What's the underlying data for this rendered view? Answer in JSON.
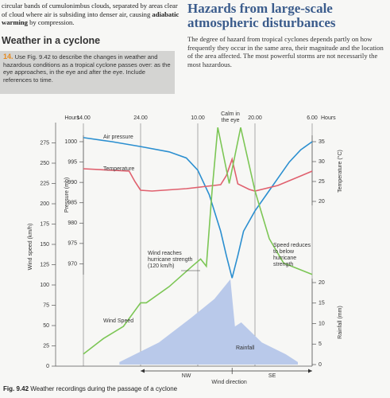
{
  "intro": [
    "circular bands of cumulonimbus clouds, separated by areas clear of cloud where air is subsiding into denser air, causing ",
    "adiabatic warming",
    " by compression."
  ],
  "section_heading": "Weather in a cyclone",
  "question": {
    "number": "14.",
    "text": "Use Fig. 9.42 to describe the changes in weather and hazardous conditions as a tropical cyclone passes over: as the eye approaches, in the eye and after the eye. Include references to time."
  },
  "article": {
    "title": "Hazards from large-scale atmospheric disturbances",
    "text": "The degree of hazard from tropical cyclones depends partly on how frequently they occur in the same area, their magnitude and the location of the area affected. The most powerful storms are not necessarily the most hazardous."
  },
  "chart_data": {
    "type": "line",
    "x_unit": "Hours",
    "xlim": [
      0,
      40
    ],
    "xticks": [
      {
        "value": 0,
        "label": "14.00"
      },
      {
        "value": 10,
        "label": "24.00"
      },
      {
        "value": 20,
        "label": "10.00"
      },
      {
        "value": 30,
        "label": "20.00"
      },
      {
        "value": 40,
        "label": "6.00"
      }
    ],
    "ylabel": "Wind speed (km/h)",
    "ylim": [
      0,
      300
    ],
    "yticks": [
      0,
      25,
      50,
      75,
      100,
      125,
      150,
      175,
      200,
      225,
      250,
      275
    ],
    "y2label": "Pressure (mb)",
    "y2lim": [
      965,
      1000
    ],
    "y2ticks": [
      970,
      975,
      980,
      985,
      990,
      995,
      1000
    ],
    "y3label": "Temperature (°C)",
    "y3lim": [
      20,
      35
    ],
    "y3ticks": [
      20,
      25,
      30,
      35
    ],
    "y4label": "Rainfall (mm)",
    "y4lim": [
      0,
      20
    ],
    "y4ticks": [
      0,
      5,
      10,
      15,
      20
    ],
    "series": [
      {
        "name": "Air pressure",
        "type": "line",
        "axis": "y2",
        "color": "#2b8fd0",
        "x": [
          0,
          5,
          10,
          15,
          18,
          20,
          22,
          24,
          25,
          26,
          27,
          28,
          30,
          32,
          34,
          36,
          38,
          40
        ],
        "values": [
          1001,
          1000,
          998.8,
          997.5,
          996,
          993,
          987,
          978,
          972,
          966.5,
          972,
          978,
          983,
          987,
          991,
          995,
          998,
          1000
        ]
      },
      {
        "name": "Temperature",
        "type": "line",
        "axis": "y3",
        "color": "#e0606e",
        "x": [
          0,
          8,
          9,
          10,
          12,
          18,
          24,
          25,
          26,
          27,
          29,
          30,
          34,
          40
        ],
        "values": [
          28.2,
          27.6,
          25,
          22.8,
          22.6,
          23.2,
          24.2,
          26.5,
          30.6,
          24.4,
          23,
          22.6,
          24,
          27.6
        ]
      },
      {
        "name": "Wind Speed",
        "type": "line",
        "axis": "y",
        "color": "#7cc655",
        "x": [
          0,
          3.5,
          7,
          10,
          11,
          15,
          19,
          20.5,
          21.5,
          22.5,
          23.5,
          25.5,
          27.5,
          30,
          32.5,
          35,
          40
        ],
        "values": [
          15,
          34,
          49,
          78,
          78,
          98,
          123,
          132,
          123,
          216,
          294,
          225,
          294,
          216,
          157,
          127,
          113
        ]
      },
      {
        "name": "Rainfall",
        "type": "area",
        "axis": "y4",
        "color": "#b9c9ea",
        "x": [
          6.3,
          13.2,
          18.75,
          22.9,
          25.7,
          26.5,
          27.6,
          31.2,
          35.4,
          37.5
        ],
        "values": [
          0.6,
          5.4,
          11.3,
          16,
          20.8,
          9.3,
          10.3,
          5.4,
          2.5,
          0.6
        ]
      }
    ],
    "annotations": [
      "Calm in the eye",
      "Wind reaches hurricane strength (120 km/h)",
      "Speed reduces to below hurricane strength"
    ],
    "directions": [
      "NW",
      "SE"
    ],
    "xlabel": "Wind direction",
    "caption": {
      "label": "Fig. 9.42",
      "text": "Weather recordings during the passage of a cyclone"
    }
  }
}
